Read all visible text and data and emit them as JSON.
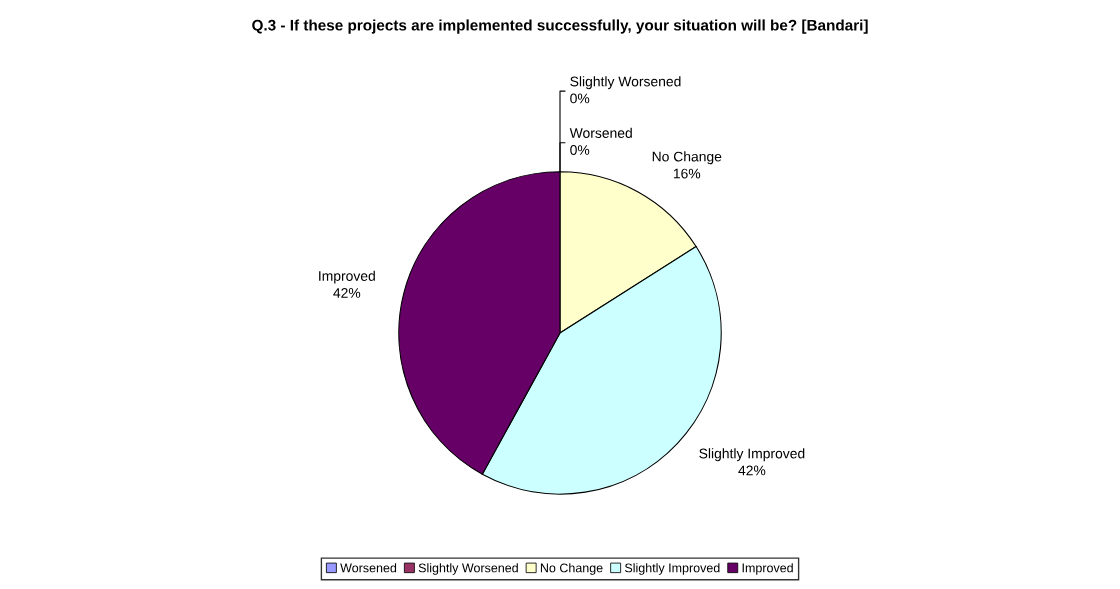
{
  "chart_data": {
    "type": "pie",
    "title": "Q.3 - If these projects are implemented successfully, your situation will be? [Bandari]",
    "categories": [
      "Worsened",
      "Slightly Worsened",
      "No Change",
      "Slightly Improved",
      "Improved"
    ],
    "values": [
      0,
      0,
      16,
      42,
      42
    ],
    "value_labels": [
      "0%",
      "0%",
      "16%",
      "42%",
      "42%"
    ],
    "colors": [
      "#9999ff",
      "#993366",
      "#ffffcc",
      "#ccffff",
      "#660066"
    ],
    "legend": "bottom"
  }
}
